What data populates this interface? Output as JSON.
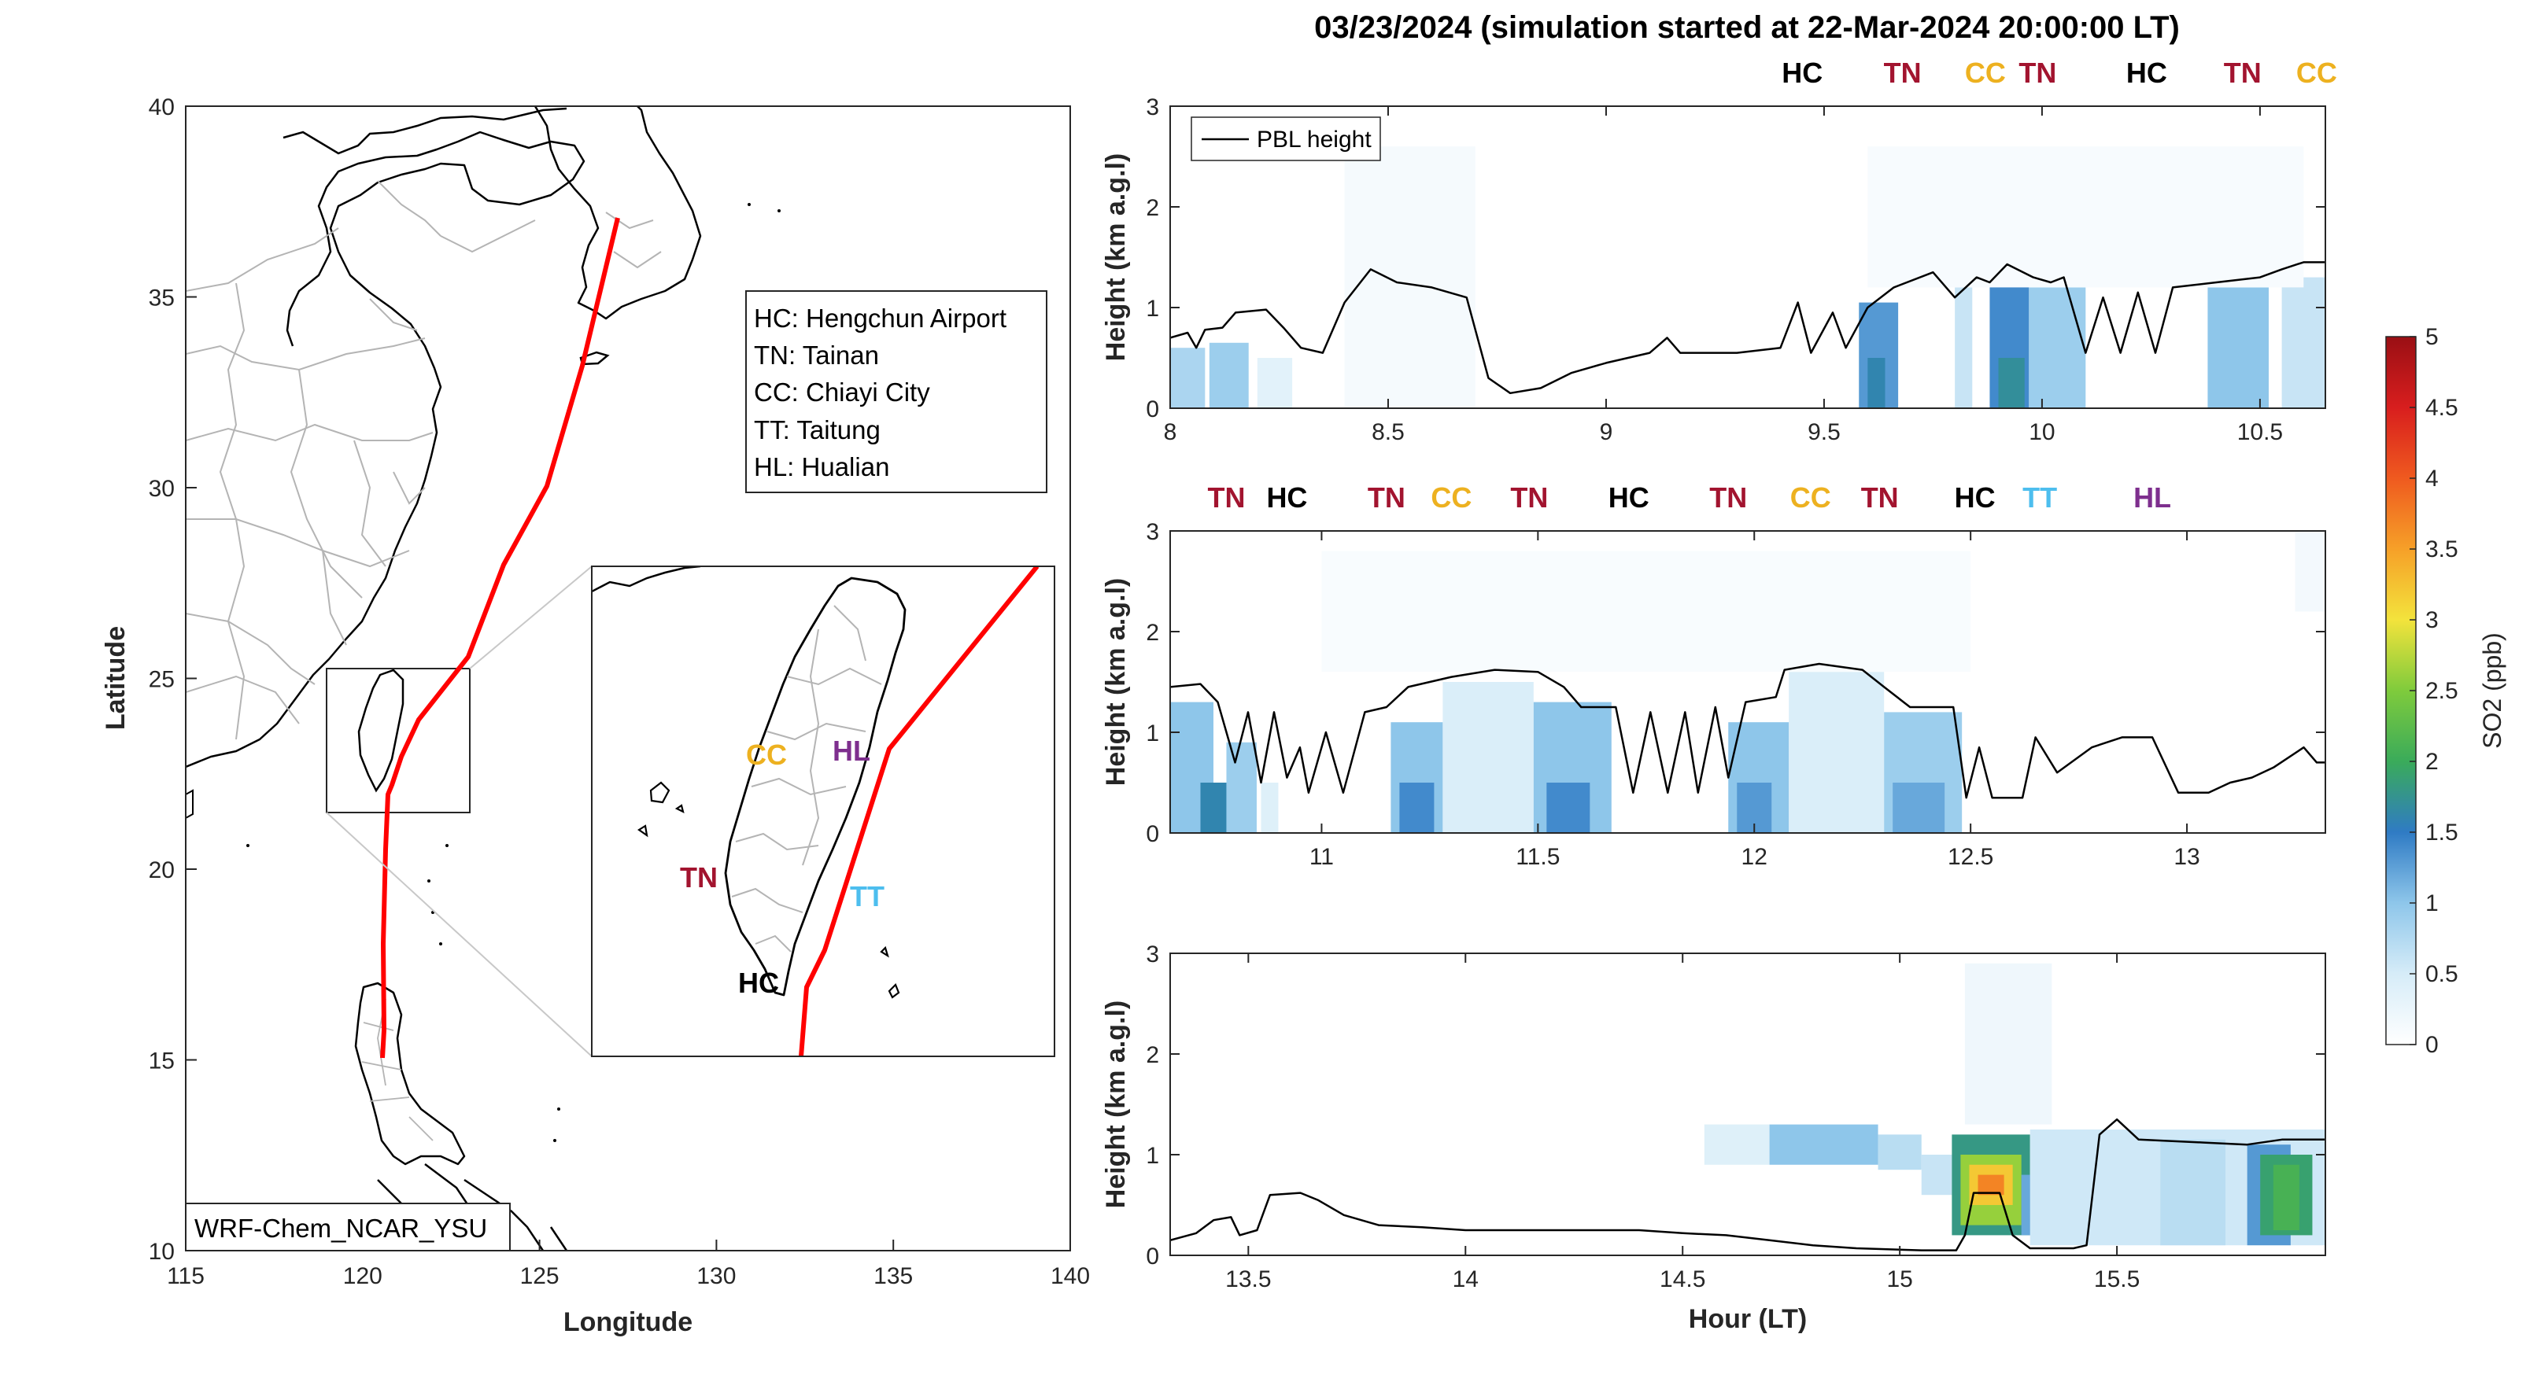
{
  "title": "03/23/2024 (simulation started at 22-Mar-2024 20:00:00 LT)",
  "colors": {
    "HC": "#000000",
    "TN": "#a2142f",
    "CC": "#edb120",
    "TT": "#4dbeee",
    "HL": "#7e2f8e",
    "track": "#ff0000",
    "pbl": "#000000",
    "coast": "#000000",
    "admin": "#b4b4b4"
  },
  "map": {
    "xlabel": "Longitude",
    "ylabel": "Latitude",
    "xlim": [
      115,
      140
    ],
    "ylim": [
      10,
      40
    ],
    "xticks": [
      "115",
      "120",
      "125",
      "130",
      "135",
      "140"
    ],
    "yticks": [
      "10",
      "15",
      "20",
      "25",
      "30",
      "35",
      "40"
    ],
    "legend": [
      "HC: Hengchun Airport",
      "TN: Tainan",
      "CC: Chiayi City",
      "TT: Taitung",
      "HL: Hualian"
    ],
    "model_label": "WRF-Chem_NCAR_YSU",
    "inset_labels": [
      {
        "code": "CC",
        "text": "CC"
      },
      {
        "code": "HL",
        "text": "HL"
      },
      {
        "code": "TN",
        "text": "TN"
      },
      {
        "code": "TT",
        "text": "TT"
      },
      {
        "code": "HC",
        "text": "HC"
      }
    ]
  },
  "colorbar": {
    "label": "SO2 (ppb)",
    "range": [
      0,
      5
    ],
    "ticks": [
      "0",
      "0.5",
      "1",
      "1.5",
      "2",
      "2.5",
      "3",
      "3.5",
      "4",
      "4.5",
      "5"
    ]
  },
  "panels": [
    {
      "ylabel": "Height (km a.g.l)",
      "xlabel": "",
      "xlim": [
        8,
        10.65
      ],
      "ylim": [
        0,
        3
      ],
      "xticks": [
        "8",
        "8.5",
        "9",
        "9.5",
        "10",
        "10.5"
      ],
      "yticks": [
        "0",
        "1",
        "2",
        "3"
      ],
      "legend": "PBL height",
      "sites": [
        {
          "code": "HC",
          "x": 9.45
        },
        {
          "code": "TN",
          "x": 9.68
        },
        {
          "code": "CC",
          "x": 9.87
        },
        {
          "code": "TN",
          "x": 9.99
        },
        {
          "code": "HC",
          "x": 10.24
        },
        {
          "code": "TN",
          "x": 10.46
        },
        {
          "code": "CC",
          "x": 10.63
        }
      ],
      "pbl": [
        [
          8,
          0.7
        ],
        [
          8.04,
          0.75
        ],
        [
          8.06,
          0.6
        ],
        [
          8.08,
          0.78
        ],
        [
          8.12,
          0.8
        ],
        [
          8.15,
          0.95
        ],
        [
          8.22,
          0.98
        ],
        [
          8.26,
          0.8
        ],
        [
          8.3,
          0.6
        ],
        [
          8.35,
          0.55
        ],
        [
          8.4,
          1.05
        ],
        [
          8.46,
          1.38
        ],
        [
          8.52,
          1.25
        ],
        [
          8.6,
          1.2
        ],
        [
          8.68,
          1.1
        ],
        [
          8.73,
          0.3
        ],
        [
          8.78,
          0.15
        ],
        [
          8.85,
          0.2
        ],
        [
          8.92,
          0.35
        ],
        [
          9,
          0.45
        ],
        [
          9.1,
          0.55
        ],
        [
          9.14,
          0.7
        ],
        [
          9.17,
          0.55
        ],
        [
          9.3,
          0.55
        ],
        [
          9.4,
          0.6
        ],
        [
          9.44,
          1.05
        ],
        [
          9.47,
          0.55
        ],
        [
          9.52,
          0.95
        ],
        [
          9.55,
          0.6
        ],
        [
          9.6,
          1.0
        ],
        [
          9.66,
          1.2
        ],
        [
          9.75,
          1.35
        ],
        [
          9.8,
          1.1
        ],
        [
          9.85,
          1.3
        ],
        [
          9.88,
          1.25
        ],
        [
          9.92,
          1.43
        ],
        [
          9.98,
          1.3
        ],
        [
          10.02,
          1.25
        ],
        [
          10.05,
          1.3
        ],
        [
          10.1,
          0.55
        ],
        [
          10.14,
          1.1
        ],
        [
          10.18,
          0.55
        ],
        [
          10.22,
          1.15
        ],
        [
          10.26,
          0.55
        ],
        [
          10.3,
          1.2
        ],
        [
          10.4,
          1.25
        ],
        [
          10.5,
          1.3
        ],
        [
          10.55,
          1.38
        ],
        [
          10.6,
          1.45
        ],
        [
          10.65,
          1.45
        ]
      ],
      "so2": [
        [
          8.0,
          8.08,
          0,
          0.6,
          0.8
        ],
        [
          8.09,
          8.18,
          0,
          0.65,
          0.9
        ],
        [
          8.2,
          8.28,
          0,
          0.5,
          0.35
        ],
        [
          8.4,
          8.7,
          0,
          2.6,
          0.12
        ],
        [
          9.58,
          9.67,
          0,
          1.05,
          1.3
        ],
        [
          9.6,
          9.64,
          0,
          0.5,
          1.6
        ],
        [
          9.8,
          9.84,
          0,
          1.2,
          0.6
        ],
        [
          9.88,
          9.97,
          0,
          1.3,
          1.4
        ],
        [
          9.9,
          9.96,
          0,
          0.5,
          1.7
        ],
        [
          9.97,
          10.1,
          0,
          1.2,
          0.9
        ],
        [
          10.38,
          10.52,
          0,
          1.2,
          1.0
        ],
        [
          10.55,
          10.65,
          0,
          1.3,
          0.6
        ],
        [
          9.6,
          10.6,
          1.2,
          2.6,
          0.1
        ]
      ]
    },
    {
      "ylabel": "Height (km a.g.l)",
      "xlabel": "",
      "xlim": [
        10.65,
        13.32
      ],
      "ylim": [
        0,
        3
      ],
      "xticks": [
        "11",
        "11.5",
        "12",
        "12.5",
        "13"
      ],
      "yticks": [
        "0",
        "1",
        "2",
        "3"
      ],
      "legend": "",
      "sites": [
        {
          "code": "TN",
          "x": 10.78
        },
        {
          "code": "HC",
          "x": 10.92
        },
        {
          "code": "TN",
          "x": 11.15
        },
        {
          "code": "CC",
          "x": 11.3
        },
        {
          "code": "TN",
          "x": 11.48
        },
        {
          "code": "HC",
          "x": 11.71
        },
        {
          "code": "TN",
          "x": 11.94
        },
        {
          "code": "CC",
          "x": 12.13
        },
        {
          "code": "TN",
          "x": 12.29
        },
        {
          "code": "HC",
          "x": 12.51
        },
        {
          "code": "TT",
          "x": 12.66
        },
        {
          "code": "HL",
          "x": 12.92
        }
      ],
      "pbl": [
        [
          10.65,
          1.45
        ],
        [
          10.72,
          1.48
        ],
        [
          10.76,
          1.3
        ],
        [
          10.8,
          0.7
        ],
        [
          10.83,
          1.2
        ],
        [
          10.86,
          0.5
        ],
        [
          10.89,
          1.2
        ],
        [
          10.92,
          0.55
        ],
        [
          10.95,
          0.85
        ],
        [
          10.97,
          0.4
        ],
        [
          11.01,
          1.0
        ],
        [
          11.05,
          0.4
        ],
        [
          11.1,
          1.2
        ],
        [
          11.15,
          1.25
        ],
        [
          11.2,
          1.45
        ],
        [
          11.3,
          1.55
        ],
        [
          11.4,
          1.62
        ],
        [
          11.5,
          1.6
        ],
        [
          11.56,
          1.45
        ],
        [
          11.6,
          1.25
        ],
        [
          11.68,
          1.25
        ],
        [
          11.72,
          0.4
        ],
        [
          11.76,
          1.2
        ],
        [
          11.8,
          0.4
        ],
        [
          11.84,
          1.2
        ],
        [
          11.87,
          0.4
        ],
        [
          11.91,
          1.25
        ],
        [
          11.94,
          0.55
        ],
        [
          11.98,
          1.3
        ],
        [
          12.05,
          1.35
        ],
        [
          12.07,
          1.62
        ],
        [
          12.15,
          1.68
        ],
        [
          12.25,
          1.62
        ],
        [
          12.3,
          1.45
        ],
        [
          12.36,
          1.25
        ],
        [
          12.46,
          1.25
        ],
        [
          12.49,
          0.35
        ],
        [
          12.52,
          0.85
        ],
        [
          12.55,
          0.35
        ],
        [
          12.62,
          0.35
        ],
        [
          12.65,
          0.95
        ],
        [
          12.7,
          0.6
        ],
        [
          12.78,
          0.85
        ],
        [
          12.85,
          0.95
        ],
        [
          12.92,
          0.95
        ],
        [
          12.98,
          0.4
        ],
        [
          13.05,
          0.4
        ],
        [
          13.1,
          0.5
        ],
        [
          13.15,
          0.55
        ],
        [
          13.2,
          0.65
        ],
        [
          13.27,
          0.85
        ],
        [
          13.3,
          0.7
        ],
        [
          13.32,
          0.7
        ]
      ],
      "so2": [
        [
          10.65,
          10.75,
          0,
          1.3,
          1.0
        ],
        [
          10.72,
          10.78,
          0,
          0.5,
          1.6
        ],
        [
          10.78,
          10.85,
          0,
          0.9,
          0.9
        ],
        [
          10.86,
          10.9,
          0,
          0.5,
          0.4
        ],
        [
          11.16,
          11.28,
          0,
          1.1,
          1.0
        ],
        [
          11.18,
          11.26,
          0,
          0.5,
          1.4
        ],
        [
          11.28,
          11.49,
          0,
          1.5,
          0.45
        ],
        [
          11.49,
          11.67,
          0,
          1.3,
          1.0
        ],
        [
          11.52,
          11.62,
          0,
          0.5,
          1.4
        ],
        [
          11.94,
          12.08,
          0,
          1.1,
          1.0
        ],
        [
          11.96,
          12.04,
          0,
          0.5,
          1.3
        ],
        [
          12.08,
          12.3,
          0,
          1.6,
          0.45
        ],
        [
          12.3,
          12.48,
          0,
          1.2,
          0.9
        ],
        [
          12.32,
          12.44,
          0,
          0.5,
          1.2
        ],
        [
          11.0,
          12.5,
          1.6,
          2.8,
          0.08
        ],
        [
          13.25,
          13.32,
          2.2,
          3.0,
          0.15
        ]
      ]
    },
    {
      "ylabel": "Height (km a.g.l)",
      "xlabel": "Hour (LT)",
      "xlim": [
        13.32,
        15.98
      ],
      "ylim": [
        0,
        3
      ],
      "xticks": [
        "13.5",
        "14",
        "14.5",
        "15",
        "15.5"
      ],
      "yticks": [
        "0",
        "1",
        "2",
        "3"
      ],
      "legend": "",
      "sites": [],
      "pbl": [
        [
          13.32,
          0.15
        ],
        [
          13.38,
          0.22
        ],
        [
          13.42,
          0.35
        ],
        [
          13.46,
          0.38
        ],
        [
          13.48,
          0.2
        ],
        [
          13.52,
          0.25
        ],
        [
          13.55,
          0.6
        ],
        [
          13.62,
          0.62
        ],
        [
          13.66,
          0.55
        ],
        [
          13.72,
          0.4
        ],
        [
          13.8,
          0.3
        ],
        [
          13.9,
          0.28
        ],
        [
          14.0,
          0.25
        ],
        [
          14.2,
          0.25
        ],
        [
          14.4,
          0.25
        ],
        [
          14.5,
          0.22
        ],
        [
          14.6,
          0.2
        ],
        [
          14.7,
          0.15
        ],
        [
          14.8,
          0.1
        ],
        [
          14.9,
          0.07
        ],
        [
          15.05,
          0.05
        ],
        [
          15.13,
          0.05
        ],
        [
          15.15,
          0.2
        ],
        [
          15.17,
          0.62
        ],
        [
          15.23,
          0.62
        ],
        [
          15.26,
          0.2
        ],
        [
          15.3,
          0.07
        ],
        [
          15.4,
          0.07
        ],
        [
          15.43,
          0.1
        ],
        [
          15.46,
          1.2
        ],
        [
          15.5,
          1.35
        ],
        [
          15.55,
          1.15
        ],
        [
          15.7,
          1.12
        ],
        [
          15.8,
          1.1
        ],
        [
          15.88,
          1.15
        ],
        [
          15.98,
          1.15
        ]
      ],
      "so2": [
        [
          14.55,
          14.7,
          0.9,
          1.3,
          0.4
        ],
        [
          14.7,
          14.95,
          0.9,
          1.3,
          1.0
        ],
        [
          14.95,
          15.05,
          0.85,
          1.2,
          0.7
        ],
        [
          15.05,
          15.12,
          0.6,
          1.0,
          0.6
        ],
        [
          15.12,
          15.3,
          0.2,
          1.2,
          1.8
        ],
        [
          15.14,
          15.28,
          0.3,
          1.0,
          2.6
        ],
        [
          15.16,
          15.26,
          0.5,
          0.9,
          3.2
        ],
        [
          15.18,
          15.24,
          0.6,
          0.8,
          3.7
        ],
        [
          15.28,
          15.32,
          0.2,
          0.8,
          1.2
        ],
        [
          15.15,
          15.35,
          1.3,
          2.9,
          0.2
        ],
        [
          15.3,
          15.98,
          0.1,
          1.25,
          0.55
        ],
        [
          15.6,
          15.75,
          0.1,
          1.15,
          0.7
        ],
        [
          15.8,
          15.9,
          0.1,
          1.1,
          1.3
        ],
        [
          15.83,
          15.95,
          0.2,
          1.0,
          1.9
        ],
        [
          15.86,
          15.92,
          0.25,
          0.9,
          2.1
        ]
      ]
    }
  ],
  "chart_data": {
    "type": "heatmap",
    "title": "03/23/2024 (simulation started at 22-Mar-2024 20:00:00 LT)",
    "xlabel": "Hour (LT)",
    "ylabel": "Height (km a.g.l)",
    "colorbar_label": "SO2 (ppb)",
    "colorbar_range": [
      0,
      5
    ],
    "ylim": [
      0,
      3
    ],
    "series": [
      {
        "name": "PBL height"
      }
    ],
    "segments": [
      {
        "xlim": [
          8,
          10.65
        ]
      },
      {
        "xlim": [
          10.65,
          13.32
        ]
      },
      {
        "xlim": [
          13.32,
          15.98
        ]
      }
    ]
  }
}
